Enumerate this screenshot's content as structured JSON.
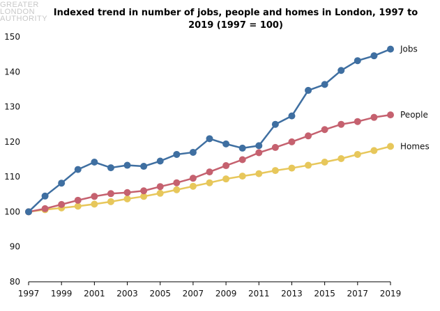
{
  "logo": {
    "lines": [
      "GREATER",
      "LONDON",
      "AUTHORITY"
    ]
  },
  "chart_data": {
    "type": "line",
    "title": "Indexed trend in number of jobs, people and homes in London, 1997 to 2019 (1997 = 100)",
    "xlabel": "",
    "ylabel": "",
    "x": [
      1997,
      1998,
      1999,
      2000,
      2001,
      2002,
      2003,
      2004,
      2005,
      2006,
      2007,
      2008,
      2009,
      2010,
      2011,
      2012,
      2013,
      2014,
      2015,
      2016,
      2017,
      2018,
      2019
    ],
    "xticks": [
      1997,
      1999,
      2001,
      2003,
      2005,
      2007,
      2009,
      2011,
      2013,
      2015,
      2017,
      2019
    ],
    "ylim": [
      80,
      150
    ],
    "yticks": [
      80,
      90,
      100,
      110,
      120,
      130,
      140,
      150
    ],
    "grid": false,
    "legend": "none",
    "series": [
      {
        "name": "Jobs",
        "color": "#3f6fa1",
        "values": [
          100,
          104.5,
          108.2,
          112.1,
          114.2,
          112.6,
          113.3,
          113.0,
          114.5,
          116.4,
          117.0,
          120.9,
          119.4,
          118.2,
          118.9,
          125.0,
          127.4,
          134.7,
          136.4,
          140.4,
          143.2,
          144.6,
          146.5
        ]
      },
      {
        "name": "People",
        "color": "#c5616f",
        "values": [
          100,
          100.9,
          102.1,
          103.3,
          104.4,
          105.2,
          105.5,
          106.0,
          107.2,
          108.3,
          109.6,
          111.4,
          113.2,
          114.9,
          116.9,
          118.4,
          120.0,
          121.7,
          123.5,
          125.0,
          125.8,
          127.0,
          127.7
        ]
      },
      {
        "name": "Homes",
        "color": "#e7c75b",
        "values": [
          100,
          100.6,
          101.1,
          101.6,
          102.2,
          102.9,
          103.7,
          104.4,
          105.3,
          106.3,
          107.3,
          108.3,
          109.4,
          110.2,
          110.9,
          111.8,
          112.5,
          113.3,
          114.2,
          115.2,
          116.4,
          117.5,
          118.7
        ]
      }
    ]
  }
}
